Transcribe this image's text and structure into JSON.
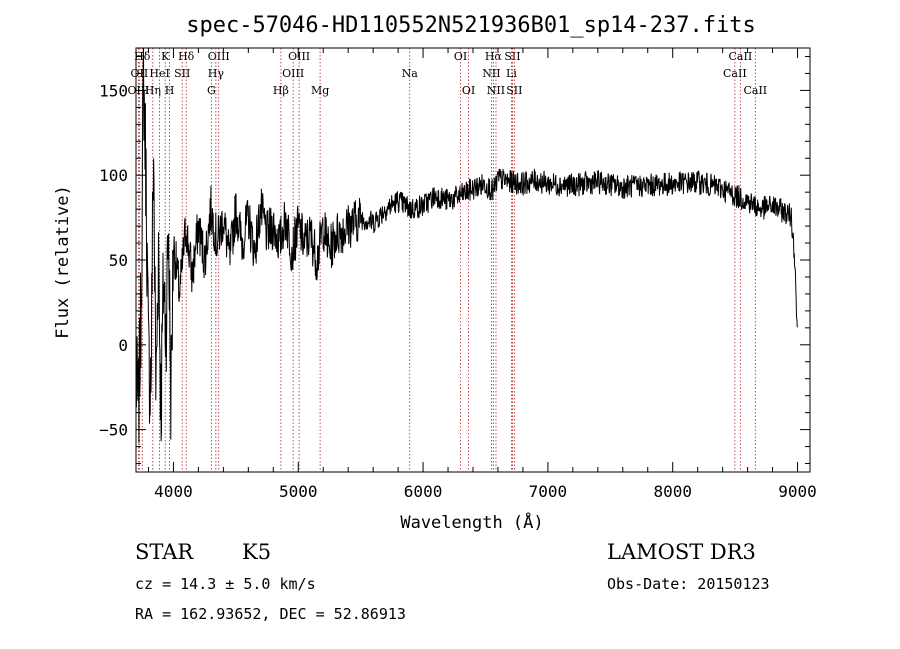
{
  "chart_data": {
    "type": "line",
    "title": "spec-57046-HD110552N521936B01_sp14-237.fits",
    "xlabel": "Wavelength (Å)",
    "ylabel": "Flux (relative)",
    "xlim": [
      3700,
      9100
    ],
    "ylim": [
      -75,
      175
    ],
    "xticks": [
      4000,
      5000,
      6000,
      7000,
      8000,
      9000
    ],
    "yticks": [
      -50,
      0,
      50,
      100,
      150
    ],
    "series": [
      {
        "name": "flux",
        "x": [
          3700,
          3720,
          3740,
          3760,
          3780,
          3800,
          3820,
          3840,
          3860,
          3880,
          3900,
          3920,
          3940,
          3960,
          3980,
          4000,
          4050,
          4100,
          4150,
          4200,
          4250,
          4300,
          4350,
          4400,
          4450,
          4500,
          4550,
          4600,
          4650,
          4700,
          4750,
          4800,
          4850,
          4900,
          4950,
          5000,
          5050,
          5100,
          5150,
          5200,
          5250,
          5300,
          5400,
          5500,
          5600,
          5700,
          5800,
          5900,
          6000,
          6100,
          6200,
          6300,
          6400,
          6500,
          6563,
          6600,
          6700,
          6800,
          6900,
          7000,
          7200,
          7400,
          7600,
          7800,
          8000,
          8200,
          8400,
          8500,
          8600,
          8700,
          8800,
          8900,
          8950,
          8980,
          9000
        ],
        "y": [
          -20,
          -40,
          20,
          160,
          100,
          -10,
          -20,
          120,
          -30,
          60,
          -40,
          40,
          10,
          70,
          -30,
          60,
          30,
          70,
          40,
          70,
          50,
          80,
          60,
          75,
          50,
          80,
          60,
          75,
          55,
          80,
          65,
          70,
          60,
          75,
          55,
          70,
          60,
          65,
          50,
          70,
          55,
          65,
          70,
          75,
          72,
          80,
          85,
          80,
          82,
          88,
          85,
          88,
          92,
          95,
          90,
          98,
          96,
          95,
          97,
          95,
          94,
          96,
          93,
          94,
          95,
          96,
          92,
          88,
          85,
          80,
          82,
          78,
          76,
          50,
          0
        ]
      }
    ],
    "line_markers": [
      {
        "label": "Hδ",
        "x": 3750,
        "row": 0
      },
      {
        "label": "OII",
        "x": 3727,
        "row": 1
      },
      {
        "label": "OIII",
        "x": 3720,
        "row": 2
      },
      {
        "label": "K",
        "x": 3934,
        "row": 0
      },
      {
        "label": "HeI",
        "x": 3889,
        "row": 1
      },
      {
        "label": "Hη",
        "x": 3835,
        "row": 2
      },
      {
        "label": "SII",
        "x": 4070,
        "row": 1
      },
      {
        "label": "H",
        "x": 3969,
        "row": 2
      },
      {
        "label": "Hδ",
        "x": 4102,
        "row": 0
      },
      {
        "label": "OIII",
        "x": 4363,
        "row": 0
      },
      {
        "label": "Hγ",
        "x": 4340,
        "row": 1
      },
      {
        "label": "G",
        "x": 4304,
        "row": 2
      },
      {
        "label": "Hβ",
        "x": 4861,
        "row": 2
      },
      {
        "label": "OIII",
        "x": 5007,
        "row": 0
      },
      {
        "label": "OIII",
        "x": 4959,
        "row": 1
      },
      {
        "label": "Mg",
        "x": 5175,
        "row": 2
      },
      {
        "label": "Na",
        "x": 5893,
        "row": 1
      },
      {
        "label": "OI",
        "x": 6300,
        "row": 0
      },
      {
        "label": "OI",
        "x": 6364,
        "row": 2
      },
      {
        "label": "Hα",
        "x": 6563,
        "row": 0
      },
      {
        "label": "NII",
        "x": 6548,
        "row": 1
      },
      {
        "label": "NII",
        "x": 6584,
        "row": 2
      },
      {
        "label": "SII",
        "x": 6716,
        "row": 0
      },
      {
        "label": "Li",
        "x": 6708,
        "row": 1
      },
      {
        "label": "SII",
        "x": 6731,
        "row": 2
      },
      {
        "label": "CaII",
        "x": 8542,
        "row": 0
      },
      {
        "label": "CaII",
        "x": 8498,
        "row": 1
      },
      {
        "label": "CaII",
        "x": 8662,
        "row": 2
      }
    ]
  },
  "info": {
    "object_type": "STAR",
    "subclass": "K5",
    "survey": "LAMOST DR3",
    "redshift": "cz = 14.3 ± 5.0 km/s",
    "obs_date": "Obs-Date: 20150123",
    "coords": "RA = 162.93652, DEC =  52.86913"
  }
}
